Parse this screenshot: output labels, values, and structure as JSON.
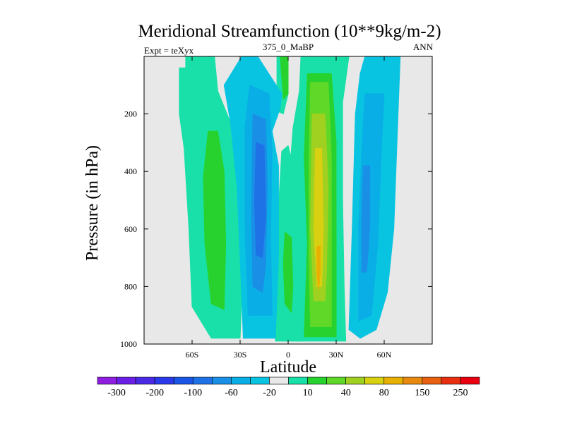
{
  "chart_data": {
    "type": "heatmap",
    "title": "Meridional Streamfunction (10**9kg/m-2)",
    "subtitle_left": "Expt = teXyx",
    "subtitle_center": "375_0_MaBP",
    "subtitle_right": "ANN",
    "xlabel": "Latitude",
    "ylabel": "Pressure (in hPa)",
    "xlim": [
      -90,
      90
    ],
    "ylim": [
      1000,
      0
    ],
    "x_ticks": [
      {
        "value": -60,
        "label": "60S"
      },
      {
        "value": -30,
        "label": "30S"
      },
      {
        "value": 0,
        "label": "0"
      },
      {
        "value": 30,
        "label": "30N"
      },
      {
        "value": 60,
        "label": "60N"
      }
    ],
    "y_ticks": [
      {
        "value": 200,
        "label": "200"
      },
      {
        "value": 400,
        "label": "400"
      },
      {
        "value": 600,
        "label": "600"
      },
      {
        "value": 800,
        "label": "800"
      },
      {
        "value": 1000,
        "label": "1000"
      }
    ],
    "missing_color": "#e8e8e8",
    "colorbar": {
      "colors": [
        "#8f1ee0",
        "#6a1ee6",
        "#4b2ae6",
        "#2b3ae8",
        "#1a55e6",
        "#1f72e6",
        "#1a8fe6",
        "#0aaee6",
        "#08c4e0",
        "#e8e8e8",
        "#18e0a8",
        "#28d22e",
        "#60d828",
        "#a0d020",
        "#d8d010",
        "#e8b000",
        "#e88a10",
        "#e86010",
        "#e83010",
        "#e80010"
      ],
      "labels": [
        "-300",
        "-200",
        "-100",
        "-60",
        "-20",
        "10",
        "40",
        "80",
        "150",
        "250"
      ]
    },
    "contours": [
      {
        "level": 10,
        "color": "#18e0a8",
        "pts": [
          [
            -68,
            40
          ],
          [
            -64,
            40
          ],
          [
            -64,
            0
          ],
          [
            -46,
            0
          ],
          [
            -44,
            120
          ],
          [
            -36,
            230
          ],
          [
            -32,
            420
          ],
          [
            -28,
            700
          ],
          [
            -30,
            980
          ],
          [
            -48,
            980
          ],
          [
            -60,
            870
          ],
          [
            -62,
            600
          ],
          [
            -65,
            320
          ],
          [
            -68,
            200
          ]
        ]
      },
      {
        "level": 10,
        "color": "#18e0a8",
        "pts": [
          [
            -7,
            0
          ],
          [
            0,
            0
          ],
          [
            0,
            130
          ],
          [
            -3,
            200
          ],
          [
            -7,
            190
          ]
        ]
      },
      {
        "level": 10,
        "color": "#18e0a8",
        "pts": [
          [
            -4,
            330
          ],
          [
            0,
            310
          ],
          [
            8,
            500
          ],
          [
            9,
            740
          ],
          [
            8,
            990
          ],
          [
            -8,
            990
          ],
          [
            -7,
            760
          ],
          [
            -6,
            520
          ]
        ]
      },
      {
        "level": 10,
        "color": "#18e0a8",
        "pts": [
          [
            8,
            0
          ],
          [
            38,
            0
          ],
          [
            34,
            160
          ],
          [
            34,
            500
          ],
          [
            35,
            800
          ],
          [
            36,
            990
          ],
          [
            5,
            990
          ],
          [
            7,
            780
          ],
          [
            5,
            560
          ],
          [
            1,
            400
          ],
          [
            3,
            250
          ],
          [
            7,
            120
          ]
        ]
      },
      {
        "level": -20,
        "color": "#08c4e0",
        "pts": [
          [
            48,
            0
          ],
          [
            70,
            0
          ],
          [
            68,
            300
          ],
          [
            66,
            600
          ],
          [
            62,
            820
          ],
          [
            55,
            950
          ],
          [
            45,
            980
          ],
          [
            38,
            950
          ],
          [
            40,
            600
          ],
          [
            42,
            200
          ],
          [
            45,
            60
          ]
        ]
      },
      {
        "level": -20,
        "color": "#08c4e0",
        "pts": [
          [
            -29,
            0
          ],
          [
            -19,
            0
          ],
          [
            -4,
            130
          ],
          [
            -5,
            180
          ],
          [
            -10,
            260
          ],
          [
            -6,
            380
          ],
          [
            -6,
            700
          ],
          [
            -8,
            980
          ],
          [
            -28,
            980
          ],
          [
            -30,
            700
          ],
          [
            -32,
            450
          ],
          [
            -36,
            230
          ],
          [
            -40,
            100
          ]
        ]
      },
      {
        "level": 40,
        "color": "#28d22e",
        "pts": [
          [
            -50,
            260
          ],
          [
            -44,
            260
          ],
          [
            -40,
            400
          ],
          [
            -39,
            650
          ],
          [
            -40,
            880
          ],
          [
            -48,
            860
          ],
          [
            -52,
            650
          ],
          [
            -53,
            420
          ]
        ]
      },
      {
        "level": 40,
        "color": "#28d22e",
        "pts": [
          [
            -2,
            610
          ],
          [
            2,
            630
          ],
          [
            3,
            800
          ],
          [
            2,
            890
          ],
          [
            -2,
            860
          ],
          [
            -3,
            720
          ]
        ]
      },
      {
        "level": 40,
        "color": "#28d22e",
        "pts": [
          [
            0,
            0
          ],
          [
            0,
            130
          ],
          [
            -3,
            150
          ],
          [
            -5,
            0
          ]
        ]
      },
      {
        "level": 40,
        "color": "#28d22e",
        "pts": [
          [
            12,
            60
          ],
          [
            27,
            60
          ],
          [
            30,
            300
          ],
          [
            30,
            800
          ],
          [
            30,
            975
          ],
          [
            10,
            975
          ],
          [
            12,
            650
          ],
          [
            10,
            350
          ]
        ]
      },
      {
        "level": -60,
        "color": "#0aaee6",
        "pts": [
          [
            -24,
            100
          ],
          [
            -12,
            130
          ],
          [
            -10,
            330
          ],
          [
            -11,
            620
          ],
          [
            -10,
            900
          ],
          [
            -25,
            900
          ],
          [
            -27,
            600
          ],
          [
            -27,
            250
          ]
        ]
      },
      {
        "level": -60,
        "color": "#0aaee6",
        "pts": [
          [
            48,
            130
          ],
          [
            60,
            130
          ],
          [
            58,
            350
          ],
          [
            56,
            650
          ],
          [
            52,
            900
          ],
          [
            44,
            920
          ],
          [
            44,
            600
          ],
          [
            46,
            320
          ]
        ]
      },
      {
        "level": 80,
        "color": "#60d828",
        "pts": [
          [
            14,
            90
          ],
          [
            25,
            90
          ],
          [
            27,
            350
          ],
          [
            27,
            700
          ],
          [
            27,
            940
          ],
          [
            14,
            940
          ],
          [
            13,
            700
          ],
          [
            13,
            350
          ]
        ]
      },
      {
        "level": -100,
        "color": "#1a8fe6",
        "pts": [
          [
            -22,
            200
          ],
          [
            -14,
            220
          ],
          [
            -13,
            450
          ],
          [
            -14,
            720
          ],
          [
            -16,
            820
          ],
          [
            -22,
            800
          ],
          [
            -23,
            550
          ]
        ]
      },
      {
        "level": -100,
        "color": "#1a8fe6",
        "pts": [
          [
            47,
            380
          ],
          [
            51,
            380
          ],
          [
            51,
            600
          ],
          [
            49,
            750
          ],
          [
            46,
            750
          ],
          [
            46,
            560
          ]
        ]
      },
      {
        "level": 150,
        "color": "#a0d020",
        "pts": [
          [
            15,
            200
          ],
          [
            23,
            200
          ],
          [
            25,
            450
          ],
          [
            24,
            750
          ],
          [
            23,
            850
          ],
          [
            16,
            850
          ],
          [
            14,
            600
          ]
        ]
      },
      {
        "level": -150,
        "color": "#1f72e6",
        "pts": [
          [
            -20,
            300
          ],
          [
            -15,
            310
          ],
          [
            -14,
            550
          ],
          [
            -16,
            700
          ],
          [
            -20,
            690
          ],
          [
            -21,
            500
          ]
        ]
      },
      {
        "level": 200,
        "color": "#d8d010",
        "pts": [
          [
            17,
            320
          ],
          [
            21,
            320
          ],
          [
            22,
            600
          ],
          [
            21,
            800
          ],
          [
            18,
            800
          ],
          [
            16,
            600
          ]
        ]
      },
      {
        "level": 250,
        "color": "#e8b000",
        "pts": [
          [
            18,
            660
          ],
          [
            20,
            660
          ],
          [
            20,
            760
          ],
          [
            19,
            810
          ],
          [
            18,
            760
          ]
        ]
      }
    ]
  }
}
